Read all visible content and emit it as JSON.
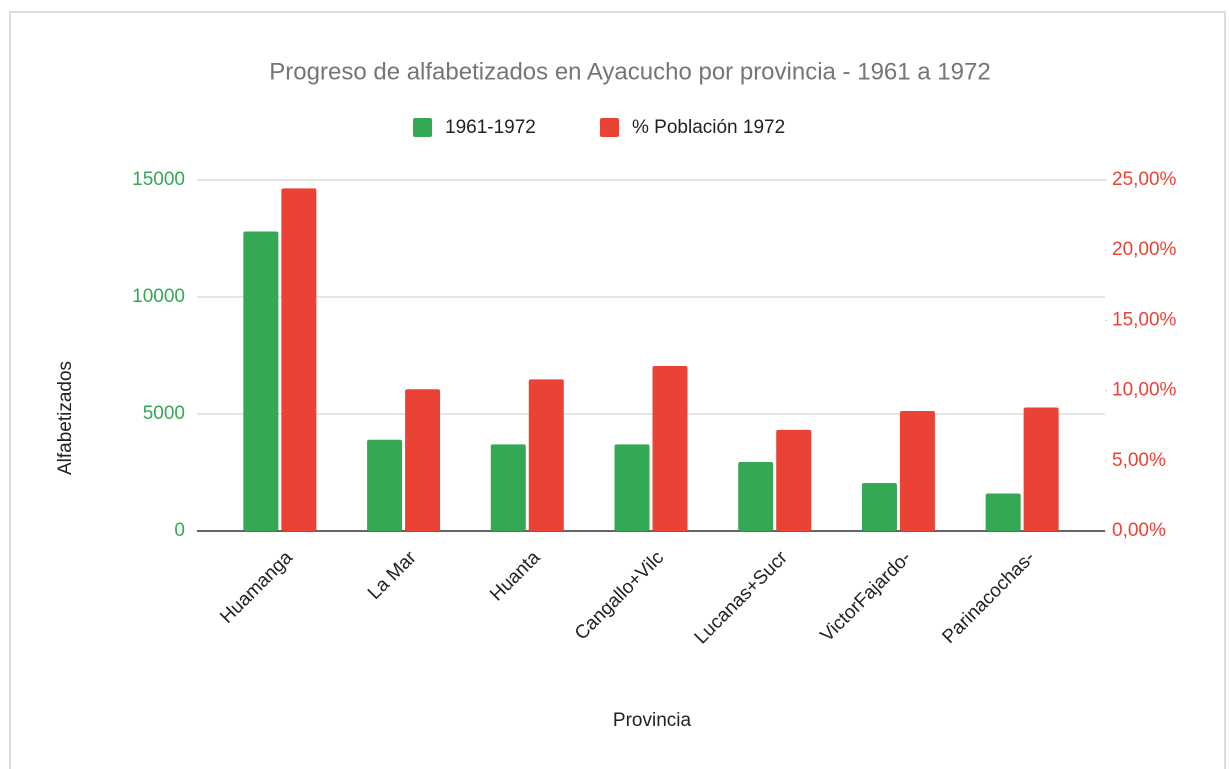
{
  "chart_data": {
    "type": "bar",
    "title": "Progreso de alfabetizados en Ayacucho por provincia - 1961 a 1972",
    "x_label": "Provincia",
    "y_label": "Alfabetizados",
    "categories": [
      "Huamanga",
      "La Mar",
      "Huanta",
      "Cangallo+Vilc",
      "Lucanas+Sucr",
      "VictorFajardo-",
      "Parinacochas-"
    ],
    "series": [
      {
        "name": "1961-1972",
        "color": "#34a853",
        "values": [
          12800,
          3900,
          3700,
          3700,
          2950,
          2050,
          1600
        ]
      },
      {
        "name": "% Población 1972",
        "color": "#ea4335",
        "axis": "y2",
        "values": [
          24.4,
          10.1,
          10.8,
          11.75,
          7.2,
          8.55,
          8.8
        ]
      }
    ],
    "ylim": [
      0,
      15000
    ],
    "yticks": [
      0,
      5000,
      10000,
      15000
    ],
    "y2lim": [
      0,
      25
    ],
    "y2ticks": [
      {
        "value": 0,
        "label": "0,00%"
      },
      {
        "value": 5,
        "label": "5,00%"
      },
      {
        "value": 10,
        "label": "10,00%"
      },
      {
        "value": 15,
        "label": "15,00%"
      },
      {
        "value": 20,
        "label": "20,00%"
      },
      {
        "value": 25,
        "label": "25,00%"
      }
    ],
    "grid": true,
    "legend": "top"
  }
}
